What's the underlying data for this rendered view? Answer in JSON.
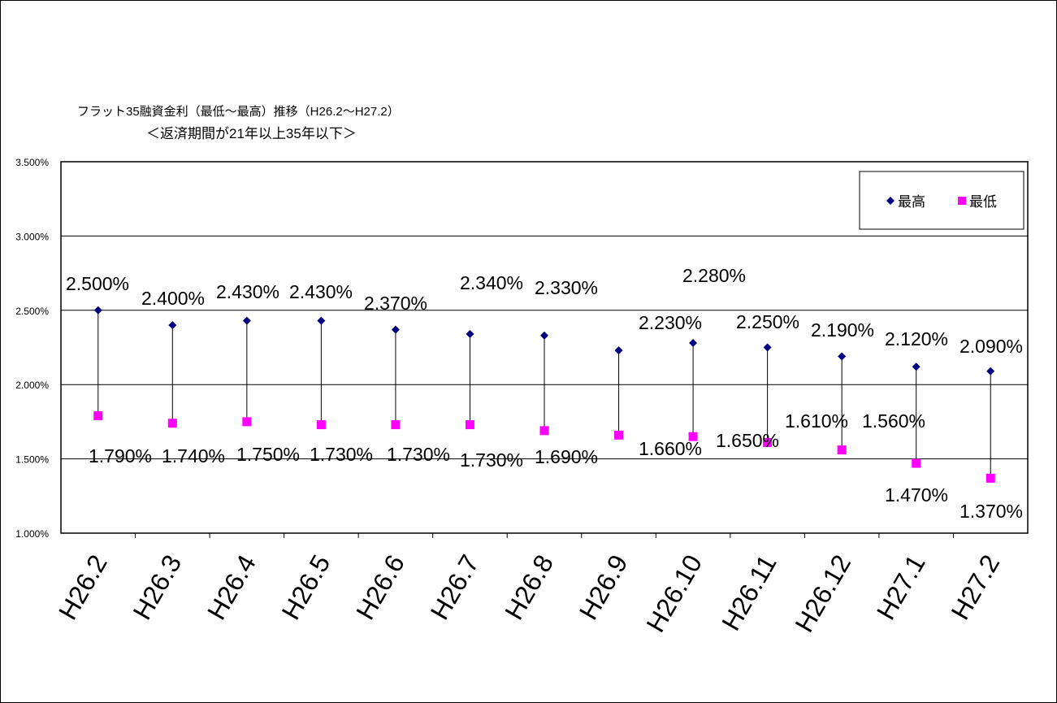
{
  "chart_data": {
    "type": "scatter",
    "title": "フラット35融資金利（最低～最高）推移（H26.2～H27.2）",
    "subtitle": "＜返済期間が21年以上35年以下＞",
    "categories": [
      "H26.2",
      "H26.3",
      "H26.4",
      "H26.5",
      "H26.6",
      "H26.7",
      "H26.8",
      "H26.9",
      "H26.10",
      "H26.11",
      "H26.12",
      "H27.1",
      "H27.2"
    ],
    "ylim": [
      1.0,
      3.5
    ],
    "yticks": [
      "1.000%",
      "1.500%",
      "2.000%",
      "2.500%",
      "3.000%",
      "3.500%"
    ],
    "grid": true,
    "legend_position": "top-right",
    "series": [
      {
        "name": "最高",
        "color": "#000080",
        "marker": "diamond",
        "values": [
          2.5,
          2.4,
          2.43,
          2.43,
          2.37,
          2.34,
          2.33,
          2.23,
          2.28,
          2.25,
          2.19,
          2.12,
          2.09
        ],
        "labels": [
          "2.500%",
          "2.400%",
          "2.430%",
          "2.430%",
          "2.370%",
          "2.340%",
          "2.330%",
          "2.230%",
          "2.280%",
          "2.250%",
          "2.190%",
          "2.120%",
          "2.090%"
        ]
      },
      {
        "name": "最低",
        "color": "#FF00FF",
        "marker": "square",
        "values": [
          1.79,
          1.74,
          1.75,
          1.73,
          1.73,
          1.73,
          1.69,
          1.66,
          1.65,
          1.61,
          1.56,
          1.47,
          1.37
        ],
        "labels": [
          "1.790%",
          "1.740%",
          "1.750%",
          "1.730%",
          "1.730%",
          "1.730%",
          "1.690%",
          "1.660%",
          "1.650%",
          "1.610%",
          "1.560%",
          "1.470%",
          "1.370%"
        ]
      }
    ]
  }
}
